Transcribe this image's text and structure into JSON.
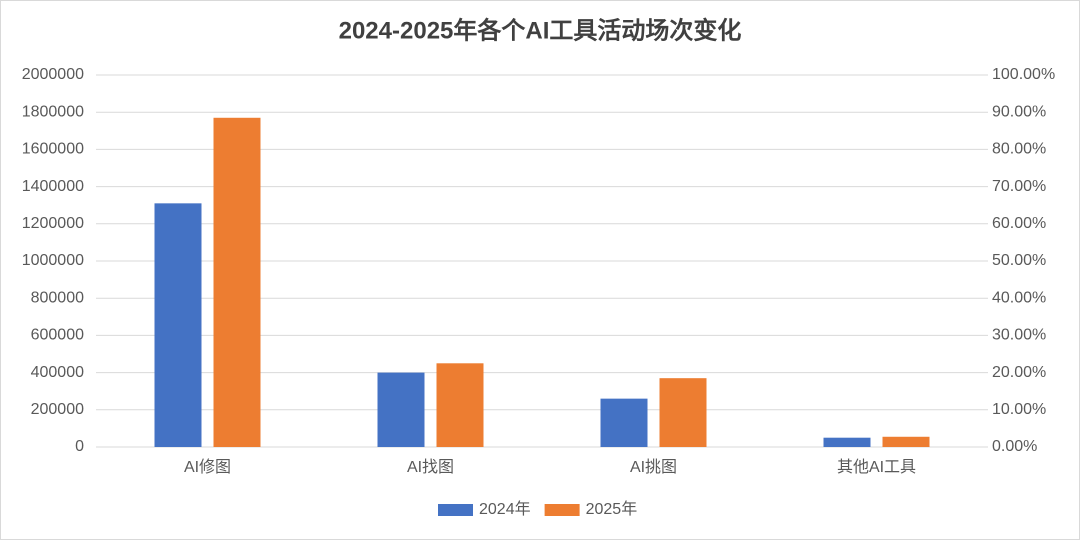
{
  "chart_data": {
    "type": "bar",
    "title": "2024-2025年各个AI工具活动场次变化",
    "categories": [
      "AI修图",
      "AI找图",
      "AI挑图",
      "其他AI工具"
    ],
    "series": [
      {
        "name": "2024年",
        "color": "#4472c4",
        "values": [
          1310000,
          400000,
          260000,
          50000
        ]
      },
      {
        "name": "2025年",
        "color": "#ed7d31",
        "values": [
          1770000,
          450000,
          370000,
          55000
        ]
      }
    ],
    "ylim": [
      0,
      2000000
    ],
    "yticks": [
      0,
      200000,
      400000,
      600000,
      800000,
      1000000,
      1200000,
      1400000,
      1600000,
      1800000,
      2000000
    ],
    "y2lim": [
      0,
      100
    ],
    "y2ticks": [
      {
        "value": 0,
        "label": "0.00%"
      },
      {
        "value": 10,
        "label": "10.00%"
      },
      {
        "value": 20,
        "label": "20.00%"
      },
      {
        "value": 30,
        "label": "30.00%"
      },
      {
        "value": 40,
        "label": "40.00%"
      },
      {
        "value": 50,
        "label": "50.00%"
      },
      {
        "value": 60,
        "label": "60.00%"
      },
      {
        "value": 70,
        "label": "70.00%"
      },
      {
        "value": 80,
        "label": "80.00%"
      },
      {
        "value": 90,
        "label": "90.00%"
      },
      {
        "value": 100,
        "label": "100.00%"
      }
    ],
    "grid": true,
    "legend": "bottom"
  }
}
